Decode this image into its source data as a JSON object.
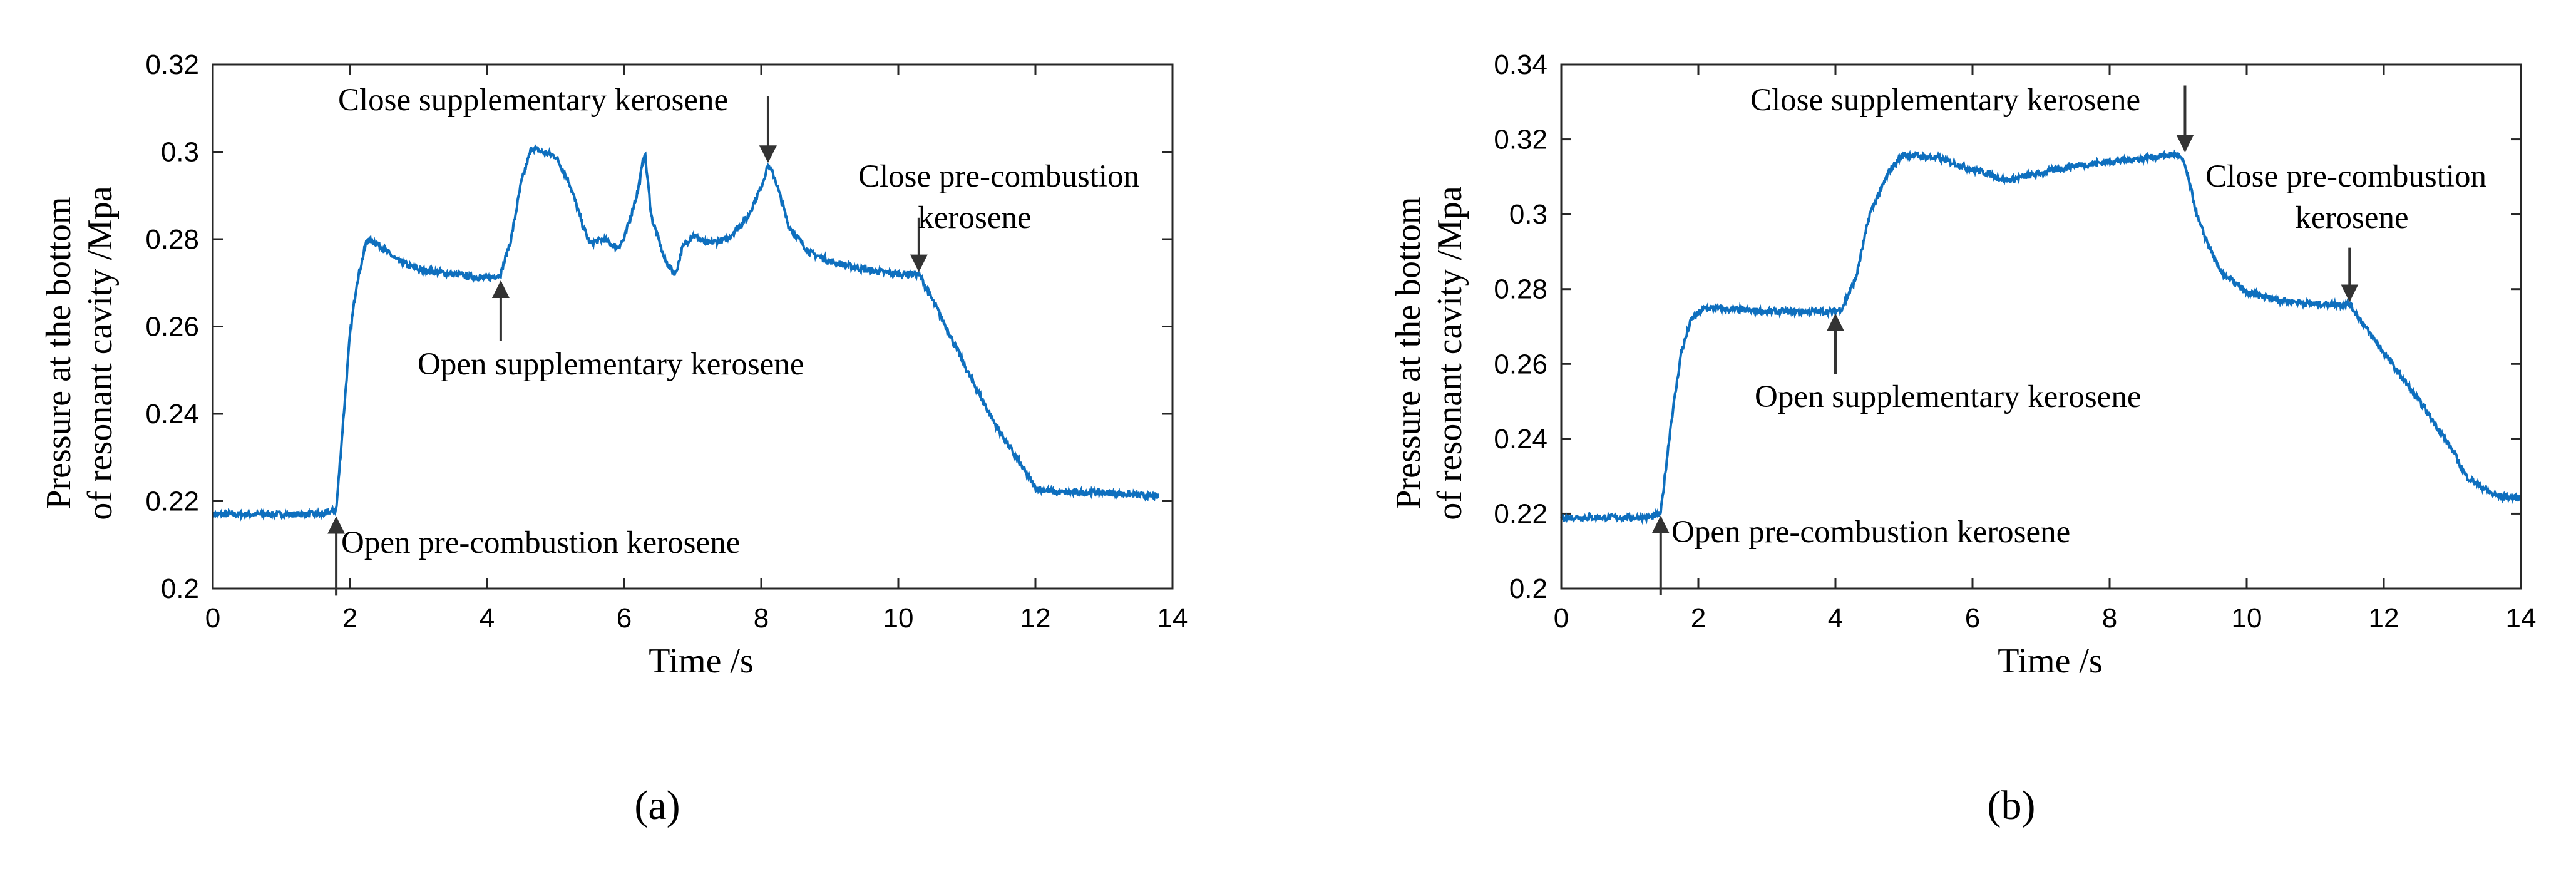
{
  "figure": {
    "colors": {
      "line": "#0e6fbe",
      "axis": "#262626",
      "arrow": "#333333",
      "text": "#000000"
    }
  },
  "chart_data": [
    {
      "type": "line",
      "panel_label": "(a)",
      "xlabel": "Time /s",
      "ylabel_line1": "Pressure at the bottom",
      "ylabel_line2": "of resonant cavity /Mpa",
      "xlim": [
        0,
        14
      ],
      "ylim": [
        0.2,
        0.32
      ],
      "xticks": [
        0,
        2,
        4,
        6,
        8,
        10,
        12,
        14
      ],
      "yticks": [
        0.2,
        0.22,
        0.24,
        0.26,
        0.28,
        0.3,
        0.32
      ],
      "xtick_labels": [
        "0",
        "2",
        "4",
        "6",
        "8",
        "10",
        "12",
        "14"
      ],
      "ytick_labels": [
        "0.2",
        "0.22",
        "0.24",
        "0.26",
        "0.28",
        "0.3",
        "0.32"
      ],
      "series": [
        {
          "name": "pressure",
          "x": [
            0,
            1.6,
            1.8,
            1.9,
            2.0,
            2.1,
            2.25,
            2.4,
            2.7,
            3.0,
            3.5,
            4.0,
            4.2,
            4.35,
            4.5,
            4.65,
            4.8,
            5.0,
            5.2,
            5.4,
            5.5,
            5.7,
            5.9,
            6.0,
            6.2,
            6.3,
            6.4,
            6.6,
            6.75,
            6.85,
            7.0,
            7.2,
            7.5,
            7.8,
            8.0,
            8.1,
            8.2,
            8.4,
            8.7,
            9.0,
            9.5,
            10.0,
            10.3,
            10.6,
            11.0,
            11.4,
            11.8,
            12.0,
            12.3,
            13.0,
            13.8
          ],
          "y": [
            0.217,
            0.217,
            0.218,
            0.238,
            0.258,
            0.27,
            0.28,
            0.279,
            0.275,
            0.273,
            0.272,
            0.271,
            0.272,
            0.28,
            0.293,
            0.301,
            0.3,
            0.299,
            0.293,
            0.283,
            0.279,
            0.28,
            0.278,
            0.28,
            0.291,
            0.3,
            0.285,
            0.275,
            0.272,
            0.278,
            0.281,
            0.279,
            0.28,
            0.285,
            0.292,
            0.297,
            0.294,
            0.283,
            0.277,
            0.275,
            0.273,
            0.272,
            0.272,
            0.263,
            0.25,
            0.238,
            0.228,
            0.223,
            0.222,
            0.222,
            0.221
          ]
        }
      ],
      "annotations": [
        {
          "text": "Open pre-combustion kerosene",
          "x": 1.8,
          "y": 0.217
        },
        {
          "text": "Open supplementary kerosene",
          "x": 4.2,
          "y": 0.271
        },
        {
          "text": "Close supplementary kerosene",
          "x": 8.1,
          "y": 0.297
        },
        {
          "text_line1": "Close pre-combustion",
          "text_line2": "kerosene",
          "x": 10.3,
          "y": 0.272
        }
      ]
    },
    {
      "type": "line",
      "panel_label": "(b)",
      "xlabel": "Time /s",
      "ylabel_line1": "Pressure at the bottom",
      "ylabel_line2": "of resonant cavity /Mpa",
      "xlim": [
        0,
        14
      ],
      "ylim": [
        0.2,
        0.34
      ],
      "xticks": [
        0,
        2,
        4,
        6,
        8,
        10,
        12,
        14
      ],
      "yticks": [
        0.2,
        0.22,
        0.24,
        0.26,
        0.28,
        0.3,
        0.32,
        0.34
      ],
      "xtick_labels": [
        "0",
        "2",
        "4",
        "6",
        "8",
        "10",
        "12",
        "14"
      ],
      "ytick_labels": [
        "0.2",
        "0.22",
        "0.24",
        "0.26",
        "0.28",
        "0.3",
        "0.32",
        "0.34"
      ],
      "series": [
        {
          "name": "pressure",
          "x": [
            0,
            1.3,
            1.45,
            1.6,
            1.75,
            1.9,
            2.1,
            3.0,
            4.0,
            4.1,
            4.3,
            4.5,
            4.8,
            5.0,
            5.5,
            6.0,
            6.2,
            6.5,
            7.0,
            7.5,
            8.0,
            8.5,
            9.0,
            9.1,
            9.3,
            9.6,
            10.0,
            10.5,
            11.0,
            11.5,
            11.8,
            12.2,
            12.6,
            13.0,
            13.2,
            13.6,
            14.0
          ],
          "y": [
            0.219,
            0.219,
            0.22,
            0.244,
            0.263,
            0.272,
            0.275,
            0.274,
            0.274,
            0.275,
            0.283,
            0.3,
            0.312,
            0.316,
            0.315,
            0.312,
            0.311,
            0.309,
            0.311,
            0.313,
            0.314,
            0.315,
            0.316,
            0.313,
            0.298,
            0.285,
            0.279,
            0.277,
            0.276,
            0.276,
            0.268,
            0.258,
            0.248,
            0.237,
            0.23,
            0.225,
            0.224
          ]
        }
      ],
      "annotations": [
        {
          "text": "Open pre-combustion kerosene",
          "x": 1.45,
          "y": 0.22
        },
        {
          "text": "Open supplementary kerosene",
          "x": 4.0,
          "y": 0.274
        },
        {
          "text": "Close supplementary kerosene",
          "x": 9.1,
          "y": 0.316
        },
        {
          "text_line1": "Close pre-combustion",
          "text_line2": "kerosene",
          "x": 11.5,
          "y": 0.276
        }
      ]
    }
  ]
}
